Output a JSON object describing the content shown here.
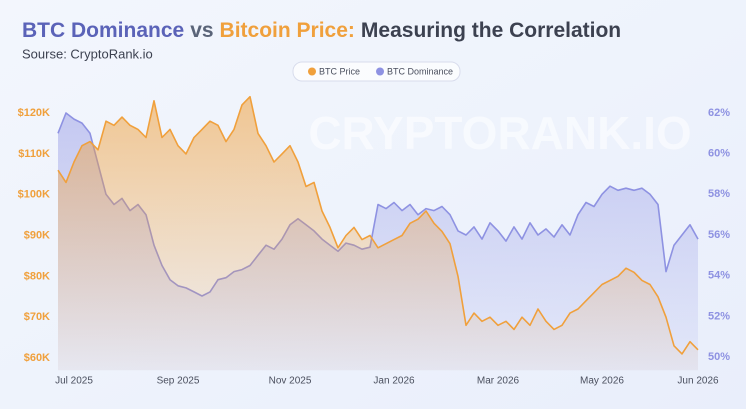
{
  "chart_data": {
    "type": "area",
    "title": [
      {
        "text": "BTC Dominance",
        "color": "#5b63b8"
      },
      {
        "text": "vs",
        "color": "#5a6478"
      },
      {
        "text": "Bitcoin Price:",
        "color": "#f0a03c"
      },
      {
        "text": "Measuring the Correlation",
        "color": "#3c4150"
      }
    ],
    "subtitle": "Sourse: CryptoRank.io",
    "watermark": "CRYPTORANK.IO",
    "legend": "top",
    "categories": [
      null,
      null,
      "Jul 2025",
      null,
      null,
      null,
      null,
      null,
      null,
      null,
      null,
      null,
      null,
      null,
      null,
      "Sep 2025",
      null,
      null,
      null,
      null,
      null,
      null,
      null,
      null,
      null,
      null,
      null,
      null,
      null,
      "Nov 2025",
      null,
      null,
      null,
      null,
      null,
      null,
      null,
      null,
      null,
      null,
      null,
      null,
      "Jan 2026",
      null,
      null,
      null,
      null,
      null,
      null,
      null,
      null,
      null,
      null,
      null,
      null,
      "Mar 2026",
      null,
      null,
      null,
      null,
      null,
      null,
      null,
      null,
      null,
      null,
      null,
      null,
      "May 2026",
      null,
      null,
      null,
      null,
      null,
      null,
      null,
      null,
      null,
      null,
      null,
      "Jun 2026"
    ],
    "series": [
      {
        "name": "BTC Price",
        "color": "#f0a03c",
        "axis": "y",
        "values": [
          106000,
          103000,
          108000,
          112000,
          113000,
          111000,
          118000,
          117000,
          119000,
          117000,
          116000,
          114000,
          123000,
          114000,
          116000,
          112000,
          110000,
          114000,
          116000,
          118000,
          117000,
          113000,
          116000,
          122000,
          124000,
          115000,
          112000,
          108000,
          110000,
          112000,
          108000,
          102000,
          103000,
          96000,
          92000,
          87000,
          90000,
          92000,
          89000,
          90000,
          87000,
          88000,
          89000,
          90000,
          93000,
          94000,
          96000,
          93000,
          91000,
          88000,
          80000,
          68000,
          71000,
          69000,
          70000,
          68000,
          69000,
          67000,
          70000,
          68000,
          72000,
          69000,
          67000,
          68000,
          71000,
          72000,
          74000,
          76000,
          78000,
          79000,
          80000,
          82000,
          81000,
          79000,
          78000,
          75000,
          70000,
          63000,
          61000,
          64000,
          62000
        ]
      },
      {
        "name": "BTC Dominance",
        "color": "#8e92e2",
        "axis": "y2",
        "values": [
          61,
          62,
          61.7,
          61.5,
          61,
          59.5,
          58,
          57.5,
          57.8,
          57.2,
          57.5,
          57,
          55.5,
          54.5,
          53.8,
          53.5,
          53.4,
          53.2,
          53,
          53.2,
          53.8,
          53.9,
          54.2,
          54.3,
          54.5,
          55,
          55.5,
          55.3,
          55.8,
          56.5,
          56.8,
          56.5,
          56.2,
          55.8,
          55.5,
          55.2,
          55.6,
          55.5,
          55.3,
          55.4,
          57.5,
          57.3,
          57.6,
          57.2,
          57.5,
          57,
          57.3,
          57.2,
          57.4,
          57,
          56.2,
          56,
          56.4,
          55.8,
          56.6,
          56.2,
          55.7,
          56.4,
          55.8,
          56.6,
          56,
          56.3,
          55.9,
          56.5,
          56,
          57,
          57.6,
          57.4,
          58,
          58.4,
          58.2,
          58.3,
          58.2,
          58.3,
          58,
          57.5,
          54.2,
          55.5,
          56,
          56.5,
          55.8
        ]
      }
    ],
    "ylim": [
      57000,
      124000
    ],
    "yticks": [
      {
        "value": 60000,
        "label": "$60K"
      },
      {
        "value": 70000,
        "label": "$70K"
      },
      {
        "value": 80000,
        "label": "$80K"
      },
      {
        "value": 90000,
        "label": "$90K"
      },
      {
        "value": 100000,
        "label": "$100K"
      },
      {
        "value": 110000,
        "label": "$110K"
      },
      {
        "value": 120000,
        "label": "$120K"
      }
    ],
    "y2lim": [
      49.35,
      62.8
    ],
    "y2ticks": [
      {
        "value": 50,
        "label": "50%"
      },
      {
        "value": 52,
        "label": "52%"
      },
      {
        "value": 54,
        "label": "54%"
      },
      {
        "value": 56,
        "label": "56%"
      },
      {
        "value": 58,
        "label": "58%"
      },
      {
        "value": 60,
        "label": "60%"
      },
      {
        "value": 62,
        "label": "62%"
      }
    ]
  }
}
